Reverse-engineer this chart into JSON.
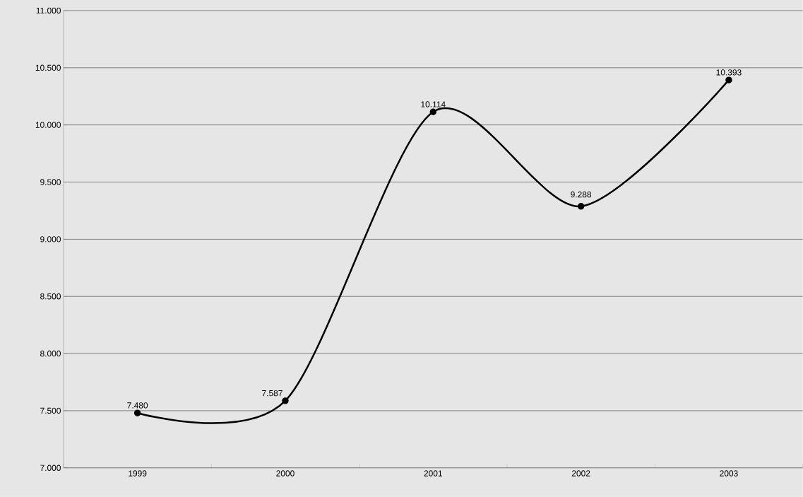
{
  "chart_data": {
    "type": "line",
    "categories": [
      "1999",
      "2000",
      "2001",
      "2002",
      "2003"
    ],
    "values": [
      7480,
      7587,
      10114,
      9288,
      10393
    ],
    "value_labels": [
      "7.480",
      "7.587",
      "10.114",
      "9.288",
      "10.393"
    ],
    "color": "#000000",
    "marker": "circle",
    "line_style": "solid",
    "ylim": [
      7000,
      11000
    ],
    "yticks": [
      {
        "value": 7000,
        "label": "7.000"
      },
      {
        "value": 7500,
        "label": "7.500"
      },
      {
        "value": 8000,
        "label": "8.000"
      },
      {
        "value": 8500,
        "label": "8.500"
      },
      {
        "value": 9000,
        "label": "9.000"
      },
      {
        "value": 9500,
        "label": "9.500"
      },
      {
        "value": 10000,
        "label": "10.000"
      },
      {
        "value": 10500,
        "label": "10.500"
      },
      {
        "value": 11000,
        "label": "11.000"
      }
    ],
    "grid": "y"
  }
}
